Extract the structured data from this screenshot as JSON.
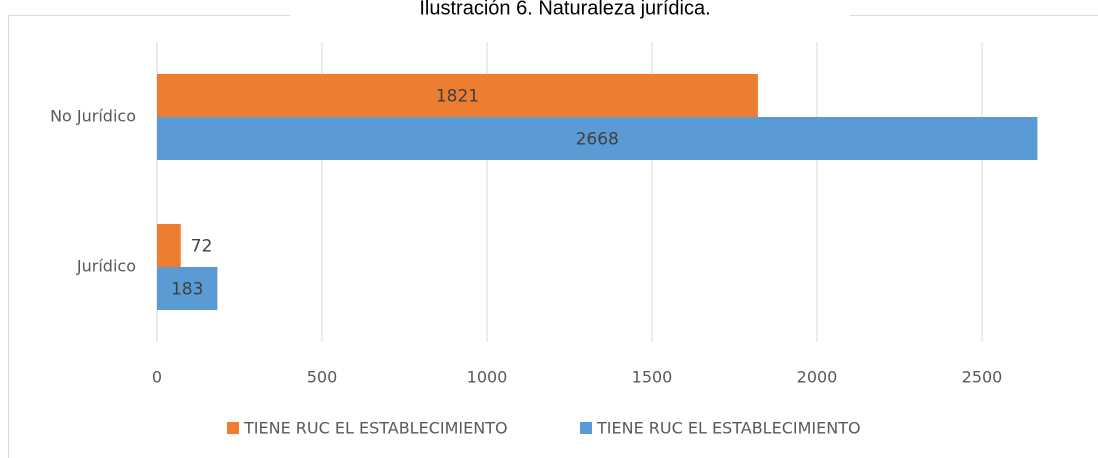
{
  "chart_data": {
    "type": "hbar",
    "title": "Ilustración 6. Naturaleza jurídica.",
    "categories": [
      "No Jurídico",
      "Jurídico"
    ],
    "series": [
      {
        "name": "TIENE RUC EL ESTABLECIMIENTO",
        "color": "#ed7d31",
        "values": [
          1821,
          72
        ]
      },
      {
        "name": "TIENE RUC EL ESTABLECIMIENTO",
        "color": "#5b9bd5",
        "values": [
          2668,
          183
        ]
      }
    ],
    "xlim": [
      0,
      2750
    ],
    "xticks": [
      0,
      500,
      1000,
      1500,
      2000,
      2500
    ],
    "grid": true,
    "legend": "bottom"
  }
}
